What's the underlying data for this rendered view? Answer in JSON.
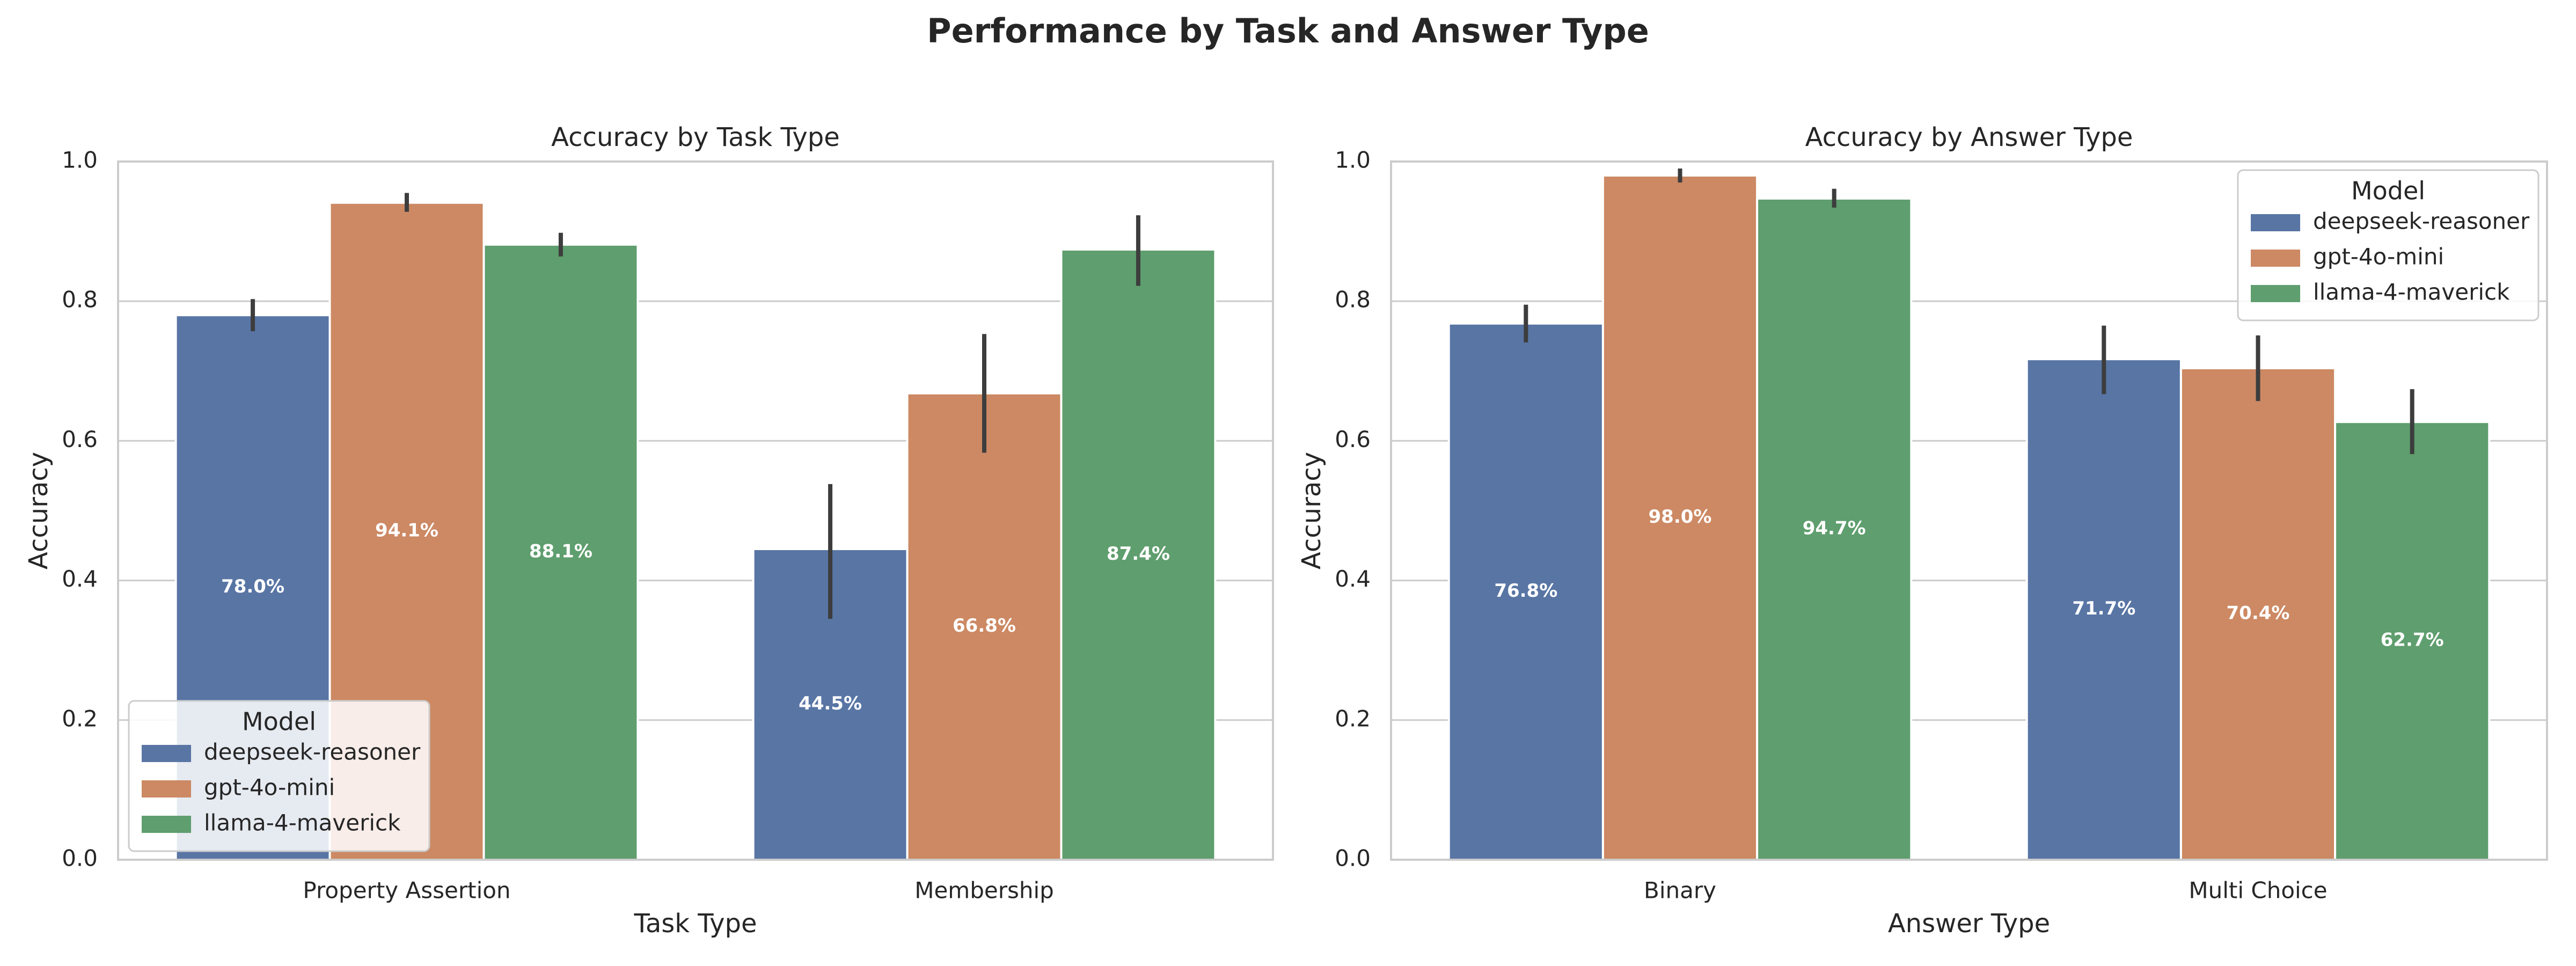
{
  "figure": {
    "suptitle": "Performance by Task and Answer Type"
  },
  "chart_data": [
    {
      "type": "bar",
      "title": "Accuracy by Task Type",
      "xlabel": "Task Type",
      "ylabel": "Accuracy",
      "ylim": [
        0,
        1.0
      ],
      "yticks": [
        "0.0",
        "0.2",
        "0.4",
        "0.6",
        "0.8",
        "1.0"
      ],
      "grid": true,
      "legend_title": "Model",
      "legend_position": "lower-left",
      "categories": [
        "Property Assertion",
        "Membership"
      ],
      "series": [
        {
          "name": "deepseek-reasoner",
          "color": "#5875a4",
          "values": [
            0.78,
            0.445
          ],
          "ci_low": [
            0.757,
            0.345
          ],
          "ci_high": [
            0.803,
            0.538
          ],
          "labels": [
            "78.0%",
            "44.5%"
          ]
        },
        {
          "name": "gpt-4o-mini",
          "color": "#cc8963",
          "values": [
            0.941,
            0.668
          ],
          "ci_low": [
            0.928,
            0.583
          ],
          "ci_high": [
            0.955,
            0.753
          ],
          "labels": [
            "94.1%",
            "66.8%"
          ]
        },
        {
          "name": "llama-4-maverick",
          "color": "#5f9e6e",
          "values": [
            0.881,
            0.874
          ],
          "ci_low": [
            0.864,
            0.822
          ],
          "ci_high": [
            0.898,
            0.923
          ],
          "labels": [
            "88.1%",
            "87.4%"
          ]
        }
      ]
    },
    {
      "type": "bar",
      "title": "Accuracy by Answer Type",
      "xlabel": "Answer Type",
      "ylabel": "Accuracy",
      "ylim": [
        0,
        1.0
      ],
      "yticks": [
        "0.0",
        "0.2",
        "0.4",
        "0.6",
        "0.8",
        "1.0"
      ],
      "grid": true,
      "legend_title": "Model",
      "legend_position": "upper-right",
      "categories": [
        "Binary",
        "Multi Choice"
      ],
      "series": [
        {
          "name": "deepseek-reasoner",
          "color": "#5875a4",
          "values": [
            0.768,
            0.717
          ],
          "ci_low": [
            0.741,
            0.667
          ],
          "ci_high": [
            0.795,
            0.765
          ],
          "labels": [
            "76.8%",
            "71.7%"
          ]
        },
        {
          "name": "gpt-4o-mini",
          "color": "#cc8963",
          "values": [
            0.98,
            0.704
          ],
          "ci_low": [
            0.97,
            0.657
          ],
          "ci_high": [
            0.99,
            0.751
          ],
          "labels": [
            "98.0%",
            "70.4%"
          ]
        },
        {
          "name": "llama-4-maverick",
          "color": "#5f9e6e",
          "values": [
            0.947,
            0.627
          ],
          "ci_low": [
            0.934,
            0.581
          ],
          "ci_high": [
            0.961,
            0.674
          ],
          "labels": [
            "94.7%",
            "62.7%"
          ]
        }
      ]
    }
  ]
}
